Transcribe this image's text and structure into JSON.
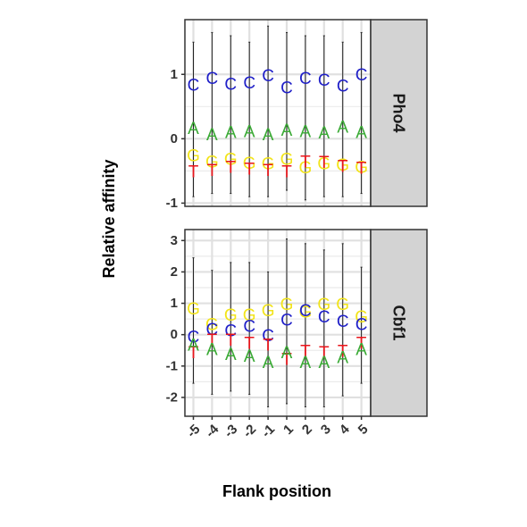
{
  "chart_data": {
    "type": "scatter",
    "xlabel": "Flank position",
    "ylabel": "Relative affinity",
    "x_ticks": [
      "-5",
      "-4",
      "-3",
      "-2",
      "-1",
      "1",
      "2",
      "3",
      "4",
      "5"
    ],
    "colors": {
      "A": "#3aaa35",
      "C": "#1f1fc8",
      "G": "#f2e41a",
      "T": "#e8151b"
    },
    "grid": true,
    "panels": [
      {
        "name": "Pho4",
        "ylim": [
          -1.05,
          1.85
        ],
        "y_ticks": [
          -1,
          0,
          1
        ],
        "whiskers": [
          {
            "lo": -0.9,
            "hi": 1.5
          },
          {
            "lo": -0.85,
            "hi": 1.65
          },
          {
            "lo": -0.85,
            "hi": 1.6
          },
          {
            "lo": -0.9,
            "hi": 1.5
          },
          {
            "lo": -0.9,
            "hi": 1.75
          },
          {
            "lo": -0.8,
            "hi": 1.65
          },
          {
            "lo": -0.95,
            "hi": 1.6
          },
          {
            "lo": -0.9,
            "hi": 1.6
          },
          {
            "lo": -0.9,
            "hi": 1.5
          },
          {
            "lo": -0.85,
            "hi": 1.65
          }
        ],
        "series": [
          {
            "name": "C",
            "values": [
              0.82,
              0.93,
              0.84,
              0.86,
              0.97,
              0.78,
              0.93,
              0.9,
              0.81,
              0.98
            ]
          },
          {
            "name": "A",
            "values": [
              0.15,
              0.05,
              0.09,
              0.1,
              0.05,
              0.12,
              0.1,
              0.08,
              0.17,
              0.09
            ]
          },
          {
            "name": "G",
            "values": [
              -0.27,
              -0.37,
              -0.33,
              -0.39,
              -0.4,
              -0.33,
              -0.46,
              -0.4,
              -0.42,
              -0.45
            ]
          },
          {
            "name": "T",
            "values": [
              -0.52,
              -0.5,
              -0.45,
              -0.48,
              -0.5,
              -0.52,
              -0.37,
              -0.38,
              -0.44,
              -0.47
            ]
          }
        ]
      },
      {
        "name": "Cbf1",
        "ylim": [
          -2.6,
          3.35
        ],
        "y_ticks": [
          -2,
          -1,
          0,
          1,
          2,
          3
        ],
        "whiskers": [
          {
            "lo": -1.55,
            "hi": 2.45
          },
          {
            "lo": -1.9,
            "hi": 2.05
          },
          {
            "lo": -1.8,
            "hi": 2.3
          },
          {
            "lo": -1.9,
            "hi": 2.3
          },
          {
            "lo": -2.3,
            "hi": 2.0
          },
          {
            "lo": -2.2,
            "hi": 3.05
          },
          {
            "lo": -2.3,
            "hi": 2.9
          },
          {
            "lo": -2.3,
            "hi": 2.7
          },
          {
            "lo": -1.95,
            "hi": 2.9
          },
          {
            "lo": -1.55,
            "hi": 2.15
          }
        ],
        "series": [
          {
            "name": "G",
            "values": [
              0.8,
              0.3,
              0.6,
              0.6,
              0.75,
              0.95,
              0.7,
              0.95,
              0.95,
              0.55
            ]
          },
          {
            "name": "C",
            "values": [
              -0.1,
              0.15,
              0.1,
              0.25,
              -0.05,
              0.45,
              0.75,
              0.55,
              0.4,
              0.3
            ]
          },
          {
            "name": "T",
            "values": [
              -0.6,
              -0.2,
              -0.2,
              -0.3,
              -0.35,
              -0.8,
              -0.55,
              -0.6,
              -0.55,
              -0.3
            ]
          },
          {
            "name": "A",
            "values": [
              -0.35,
              -0.5,
              -0.65,
              -0.7,
              -0.9,
              -0.6,
              -0.9,
              -0.9,
              -0.75,
              -0.5
            ]
          }
        ]
      }
    ]
  }
}
